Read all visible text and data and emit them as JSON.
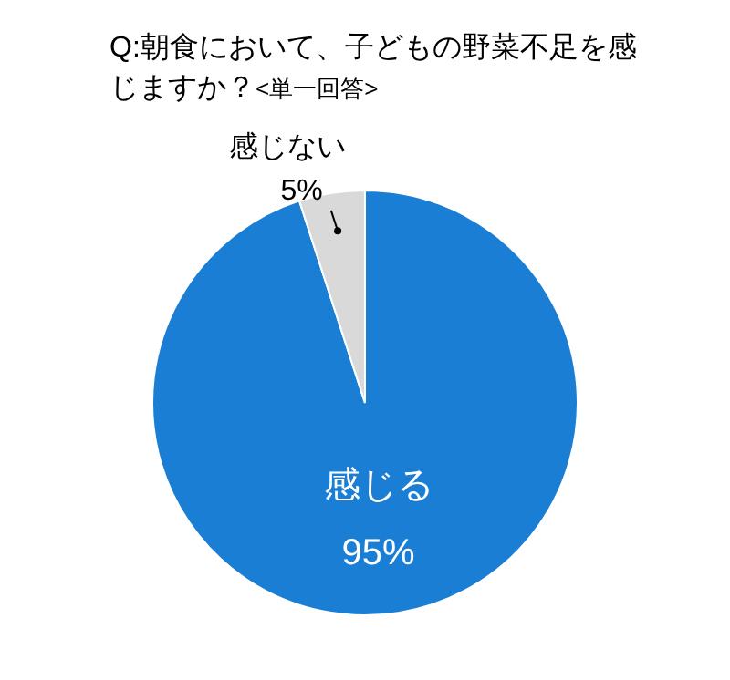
{
  "chart_data": {
    "type": "pie",
    "title": "Q:朝食において、子どもの野菜不足を感じますか？",
    "subtitle": "<単一回答>",
    "categories": [
      "感じる",
      "感じない"
    ],
    "values": [
      95,
      5
    ],
    "colors": [
      "#1a7fd4",
      "#d9d9d9"
    ],
    "value_labels": [
      "95%",
      "5%"
    ],
    "legend": false
  }
}
